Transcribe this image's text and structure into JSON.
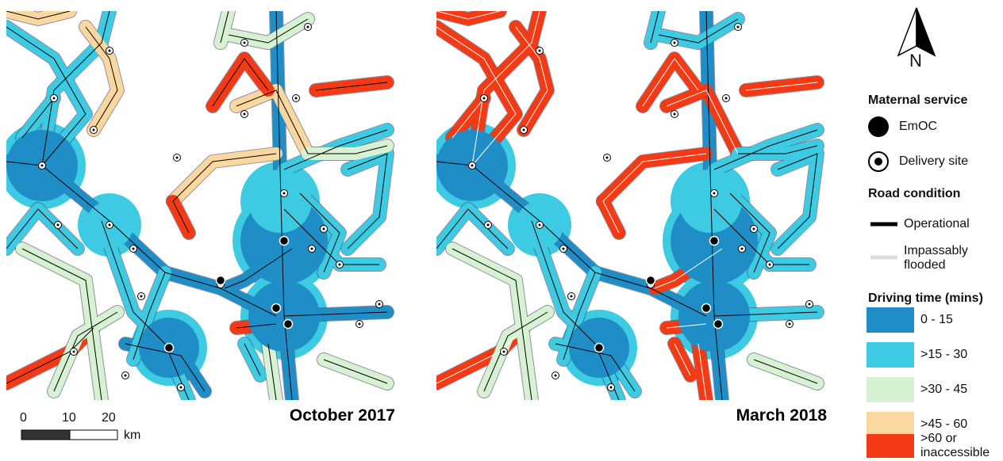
{
  "maps": [
    {
      "label": "October 2017"
    },
    {
      "label": "March 2018"
    }
  ],
  "scale_bar": {
    "ticks": [
      "0",
      "10",
      "20"
    ],
    "unit": "km"
  },
  "north_arrow": {
    "label": "N"
  },
  "legend": {
    "sections": [
      {
        "title": "Maternal service",
        "items": [
          "EmOC",
          "Delivery site"
        ]
      },
      {
        "title": "Road condition",
        "items": [
          "Operational",
          "Impassably flooded"
        ]
      },
      {
        "title": "Driving time (mins)",
        "items": [
          "0 - 15",
          ">15 - 30",
          ">30 - 45",
          ">45 - 60",
          ">60 or inaccessible"
        ]
      }
    ]
  }
}
